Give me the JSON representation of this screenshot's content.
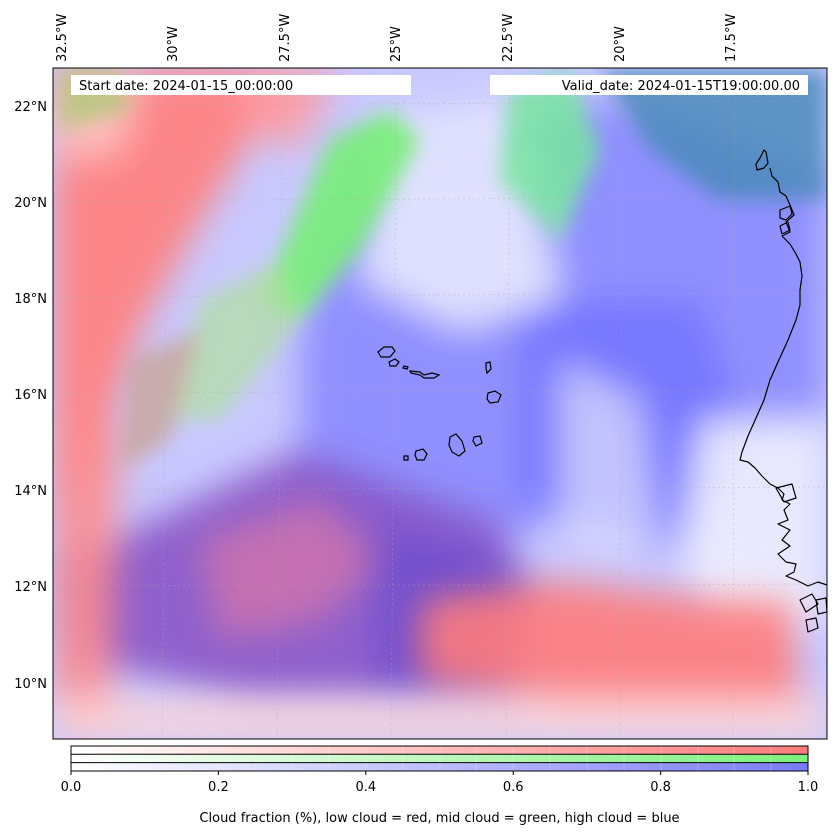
{
  "map": {
    "start_date": "Start date: 2024-01-15_00:00:00",
    "valid_date": "Valid_date: 2024-01-15T19:00:00.00",
    "lon_ticks": [
      "32.5°W",
      "30°W",
      "27.5°W",
      "25°W",
      "22.5°W",
      "20°W",
      "17.5°W"
    ],
    "lat_ticks": [
      "22°N",
      "20°N",
      "18°N",
      "16°N",
      "14°N",
      "12°N",
      "10°N"
    ],
    "lon_extent": [
      -32.5,
      -15.0
    ],
    "lat_extent": [
      8.8,
      22.8
    ],
    "layers": [
      {
        "name": "low cloud",
        "color": "#ff7b7b"
      },
      {
        "name": "mid cloud",
        "color": "#7cf07c"
      },
      {
        "name": "high cloud",
        "color": "#7a7aff"
      }
    ]
  },
  "colorbar": {
    "ticks": [
      "0.0",
      "0.2",
      "0.4",
      "0.6",
      "0.8",
      "1.0"
    ],
    "range": [
      0.0,
      1.0
    ],
    "label": "Cloud fraction (%), low cloud = red, mid cloud = green, high cloud = blue",
    "colors": {
      "low": "#ff7b7b",
      "mid": "#7cf07c",
      "high": "#7a7aff"
    }
  }
}
